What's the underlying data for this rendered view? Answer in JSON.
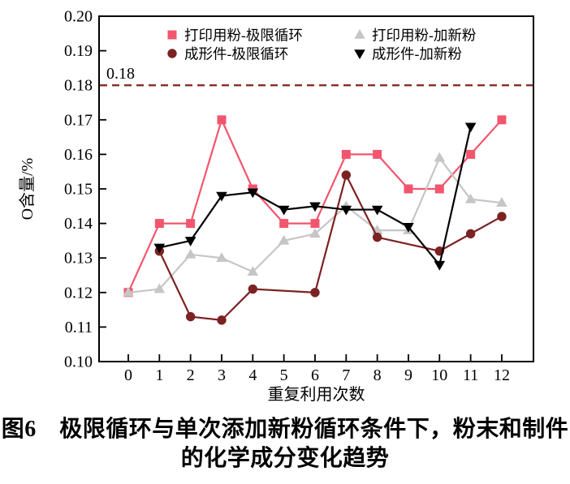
{
  "figure": {
    "caption_line1": "图6　极限循环与单次添加新粉循环条件下，粉末和制件",
    "caption_line2": "的化学成分变化趋势"
  },
  "chart_data": {
    "type": "line",
    "title": "",
    "xlabel": "重复利用次数",
    "ylabel": "O含量/%",
    "xlim": [
      -0.94,
      13.02
    ],
    "ylim": [
      0.1,
      0.2
    ],
    "x_ticks": [
      0,
      1,
      2,
      3,
      4,
      5,
      6,
      7,
      8,
      9,
      10,
      11,
      12
    ],
    "y_ticks": [
      0.1,
      0.11,
      0.12,
      0.13,
      0.14,
      0.15,
      0.16,
      0.17,
      0.18,
      0.19,
      0.2
    ],
    "grid": false,
    "legend_position": "top-inside",
    "axis_color": "#000000",
    "reference_line": {
      "value": 0.18,
      "label": "0.18",
      "color": "#8B2B2B",
      "style": "dashed"
    },
    "series": [
      {
        "name": "打印用粉-极限循环",
        "marker": "square",
        "color": "#F2566E",
        "x": [
          0,
          1,
          2,
          3,
          4,
          5,
          6,
          7,
          8,
          9,
          10,
          11,
          12
        ],
        "y": [
          0.12,
          0.14,
          0.14,
          0.17,
          0.15,
          0.14,
          0.14,
          0.16,
          0.16,
          0.15,
          0.15,
          0.16,
          0.17
        ]
      },
      {
        "name": "打印用粉-加新粉",
        "marker": "triangle-up",
        "color": "#C6C6C6",
        "x": [
          0,
          1,
          2,
          3,
          4,
          5,
          6,
          7,
          8,
          9,
          10,
          11,
          12
        ],
        "y": [
          0.12,
          0.121,
          0.131,
          0.13,
          0.126,
          0.135,
          0.137,
          0.145,
          0.138,
          0.138,
          0.159,
          0.147,
          0.146
        ]
      },
      {
        "name": "成形件-极限循环",
        "marker": "circle",
        "color": "#7C2222",
        "x": [
          1,
          2,
          3,
          4,
          6,
          7,
          8,
          10,
          11,
          12
        ],
        "y": [
          0.132,
          0.113,
          0.112,
          0.121,
          0.12,
          0.154,
          0.136,
          0.132,
          0.137,
          0.142
        ]
      },
      {
        "name": "成形件-加新粉",
        "marker": "triangle-down",
        "color": "#000000",
        "x": [
          1,
          2,
          3,
          4,
          5,
          6,
          7,
          8,
          9,
          10,
          11
        ],
        "y": [
          0.133,
          0.135,
          0.148,
          0.149,
          0.144,
          0.145,
          0.144,
          0.144,
          0.139,
          0.128,
          0.168
        ]
      }
    ]
  }
}
